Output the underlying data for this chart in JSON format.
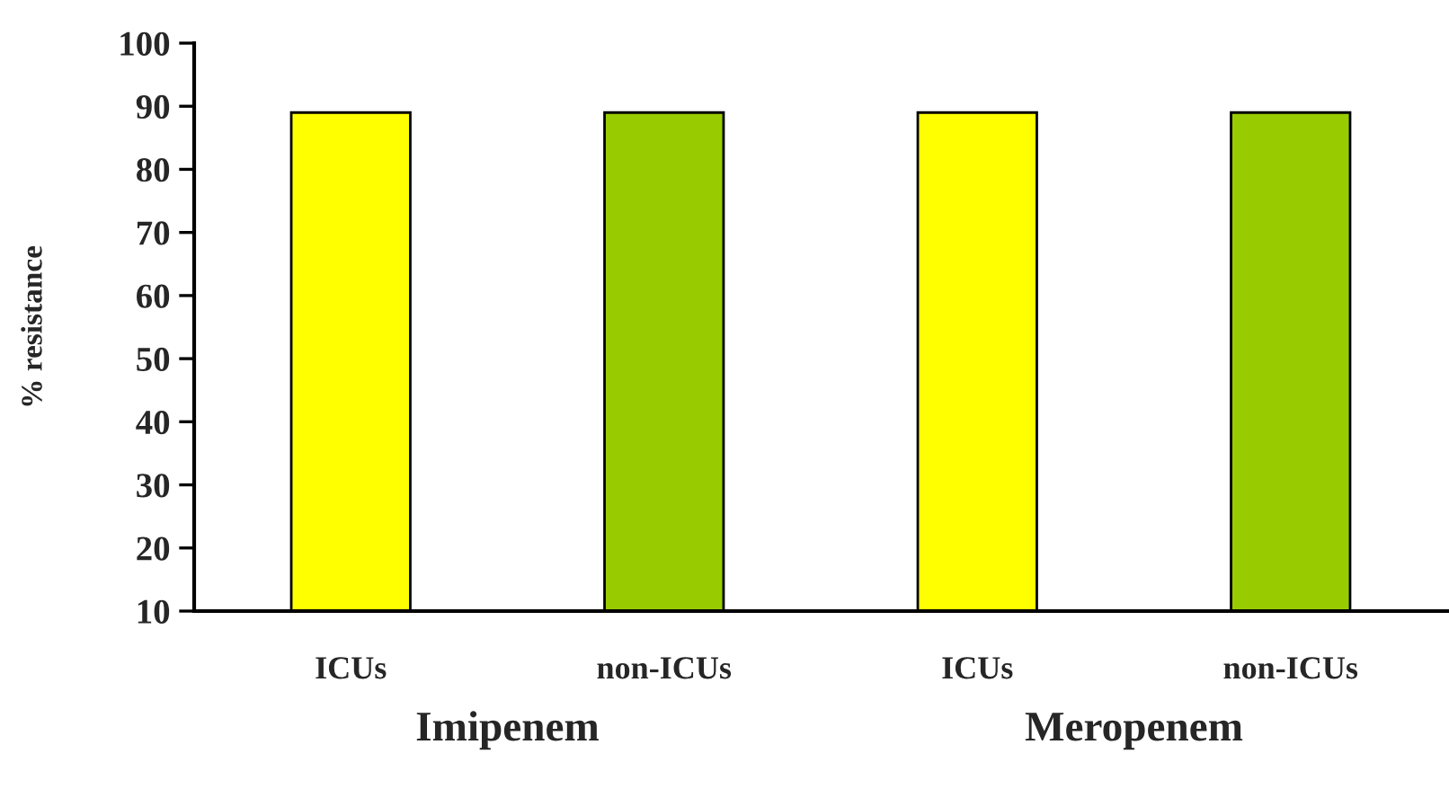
{
  "chart_data": {
    "type": "bar",
    "ylabel": "% resistance",
    "categories": [
      "ICUs",
      "non-ICUs",
      "ICUs",
      "non-ICUs"
    ],
    "values": [
      89,
      89,
      89,
      89
    ],
    "colors": [
      "#ffff00",
      "#99cc00",
      "#ffff00",
      "#99cc00"
    ],
    "ylim": [
      10,
      100
    ],
    "yticks": [
      10,
      20,
      30,
      40,
      50,
      60,
      70,
      80,
      90,
      100
    ],
    "annotations": [
      "Imipenem",
      "Meropenem"
    ],
    "grid": false,
    "legend": false
  }
}
